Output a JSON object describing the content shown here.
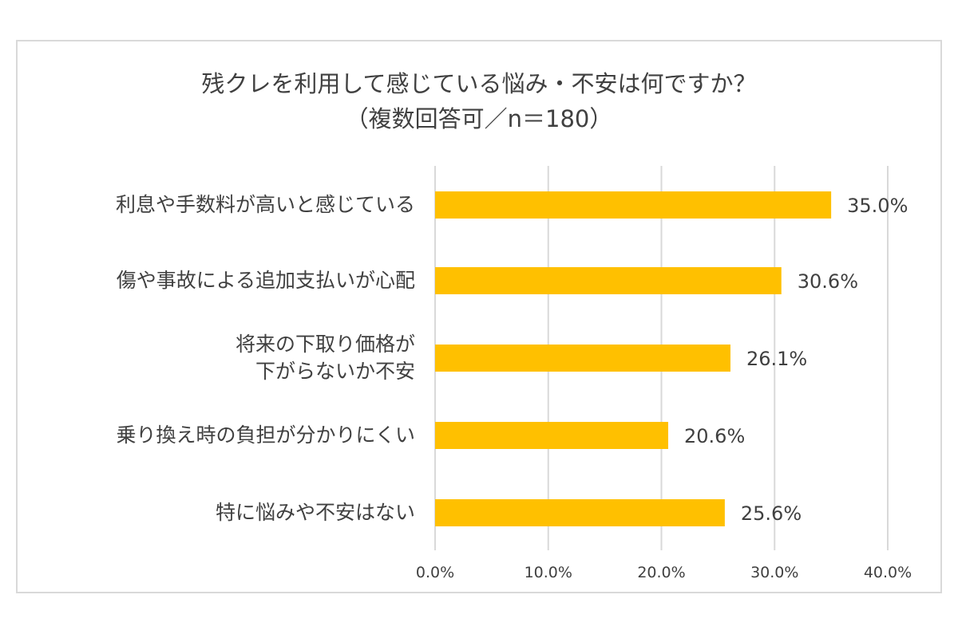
{
  "chart_data": {
    "type": "bar",
    "orientation": "horizontal",
    "title": "残クレを利用して感じている悩み・不安は何ですか？",
    "subtitle": "（複数回答可／n＝180）",
    "categories": [
      "利息や手数料が高いと感じている",
      "傷や事故による追加支払いが心配",
      "将来の下取り価格が\n下がらないか不安",
      "乗り換え時の負担が分かりにくい",
      "特に悩みや不安はない"
    ],
    "values": [
      35.0,
      30.6,
      26.1,
      20.6,
      25.6
    ],
    "data_labels": [
      "35.0%",
      "30.6%",
      "26.1%",
      "20.6%",
      "25.6%"
    ],
    "xlim": [
      0,
      40
    ],
    "x_ticks": [
      "0.0%",
      "10.0%",
      "20.0%",
      "30.0%",
      "40.0%"
    ],
    "grid": true,
    "bar_color": "#FFC000",
    "xlabel": "",
    "ylabel": ""
  }
}
